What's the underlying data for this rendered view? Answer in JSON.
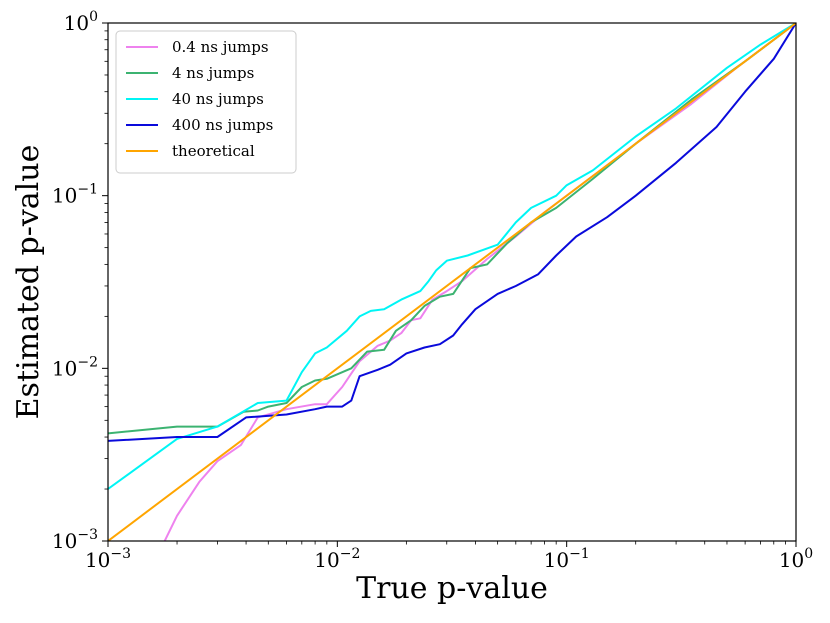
{
  "chart_data": {
    "type": "line",
    "xscale": "log",
    "yscale": "log",
    "xlabel": "True p-value",
    "ylabel": "Estimated p-value",
    "xlim": [
      0.001,
      1
    ],
    "ylim": [
      0.001,
      1
    ],
    "x_ticks": [
      {
        "value": 0.001,
        "base": "10",
        "exp": "−3"
      },
      {
        "value": 0.01,
        "base": "10",
        "exp": "−2"
      },
      {
        "value": 0.1,
        "base": "10",
        "exp": "−1"
      },
      {
        "value": 1,
        "base": "10",
        "exp": "0"
      }
    ],
    "y_ticks": [
      {
        "value": 0.001,
        "base": "10",
        "exp": "−3"
      },
      {
        "value": 0.01,
        "base": "10",
        "exp": "−2"
      },
      {
        "value": 0.1,
        "base": "10",
        "exp": "−1"
      },
      {
        "value": 1,
        "base": "10",
        "exp": "0"
      }
    ],
    "legend_position": "top-left",
    "series": [
      {
        "name": "0.4 ns jumps",
        "color": "#ee82ee",
        "points": [
          [
            0.0017,
            0.0009
          ],
          [
            0.002,
            0.0014
          ],
          [
            0.0025,
            0.0022
          ],
          [
            0.003,
            0.0029
          ],
          [
            0.0038,
            0.0036
          ],
          [
            0.0045,
            0.0052
          ],
          [
            0.006,
            0.0058
          ],
          [
            0.008,
            0.0062
          ],
          [
            0.009,
            0.0062
          ],
          [
            0.0105,
            0.0078
          ],
          [
            0.0125,
            0.011
          ],
          [
            0.015,
            0.0135
          ],
          [
            0.017,
            0.0145
          ],
          [
            0.019,
            0.016
          ],
          [
            0.021,
            0.019
          ],
          [
            0.023,
            0.0195
          ],
          [
            0.026,
            0.025
          ],
          [
            0.03,
            0.028
          ],
          [
            0.035,
            0.032
          ],
          [
            0.045,
            0.043
          ],
          [
            0.06,
            0.058
          ],
          [
            0.08,
            0.08
          ],
          [
            0.12,
            0.12
          ],
          [
            0.2,
            0.2
          ],
          [
            0.35,
            0.34
          ],
          [
            0.55,
            0.55
          ],
          [
            1.0,
            1.0
          ]
        ]
      },
      {
        "name": "4 ns jumps",
        "color": "#3cb371",
        "points": [
          [
            0.001,
            0.0042
          ],
          [
            0.002,
            0.0046
          ],
          [
            0.003,
            0.0046
          ],
          [
            0.0039,
            0.0056
          ],
          [
            0.0045,
            0.0057
          ],
          [
            0.005,
            0.006
          ],
          [
            0.006,
            0.0063
          ],
          [
            0.007,
            0.0078
          ],
          [
            0.008,
            0.0085
          ],
          [
            0.009,
            0.0087
          ],
          [
            0.0115,
            0.01
          ],
          [
            0.0135,
            0.0125
          ],
          [
            0.016,
            0.0128
          ],
          [
            0.018,
            0.0165
          ],
          [
            0.021,
            0.019
          ],
          [
            0.024,
            0.023
          ],
          [
            0.028,
            0.026
          ],
          [
            0.032,
            0.027
          ],
          [
            0.038,
            0.038
          ],
          [
            0.045,
            0.04
          ],
          [
            0.055,
            0.053
          ],
          [
            0.07,
            0.07
          ],
          [
            0.09,
            0.085
          ],
          [
            0.13,
            0.125
          ],
          [
            0.2,
            0.2
          ],
          [
            0.35,
            0.36
          ],
          [
            0.6,
            0.6
          ],
          [
            1.0,
            1.0
          ]
        ]
      },
      {
        "name": "40 ns jumps",
        "color": "#00f5f5",
        "points": [
          [
            0.001,
            0.002
          ],
          [
            0.002,
            0.0039
          ],
          [
            0.003,
            0.0046
          ],
          [
            0.0045,
            0.0063
          ],
          [
            0.006,
            0.0065
          ],
          [
            0.007,
            0.0095
          ],
          [
            0.008,
            0.0122
          ],
          [
            0.009,
            0.0132
          ],
          [
            0.011,
            0.0165
          ],
          [
            0.0125,
            0.02
          ],
          [
            0.014,
            0.0215
          ],
          [
            0.016,
            0.022
          ],
          [
            0.019,
            0.025
          ],
          [
            0.023,
            0.028
          ],
          [
            0.025,
            0.032
          ],
          [
            0.027,
            0.037
          ],
          [
            0.03,
            0.042
          ],
          [
            0.037,
            0.045
          ],
          [
            0.05,
            0.052
          ],
          [
            0.06,
            0.07
          ],
          [
            0.07,
            0.085
          ],
          [
            0.09,
            0.1
          ],
          [
            0.1,
            0.115
          ],
          [
            0.13,
            0.14
          ],
          [
            0.2,
            0.22
          ],
          [
            0.3,
            0.32
          ],
          [
            0.5,
            0.55
          ],
          [
            0.7,
            0.75
          ],
          [
            1.0,
            1.0
          ]
        ]
      },
      {
        "name": "400 ns jumps",
        "color": "#0a0adb",
        "points": [
          [
            0.001,
            0.0038
          ],
          [
            0.002,
            0.004
          ],
          [
            0.003,
            0.004
          ],
          [
            0.004,
            0.0052
          ],
          [
            0.006,
            0.0054
          ],
          [
            0.008,
            0.0058
          ],
          [
            0.009,
            0.006
          ],
          [
            0.0105,
            0.006
          ],
          [
            0.0115,
            0.0065
          ],
          [
            0.0125,
            0.009
          ],
          [
            0.015,
            0.0098
          ],
          [
            0.017,
            0.0105
          ],
          [
            0.02,
            0.0122
          ],
          [
            0.024,
            0.0132
          ],
          [
            0.028,
            0.0138
          ],
          [
            0.032,
            0.0155
          ],
          [
            0.035,
            0.018
          ],
          [
            0.04,
            0.022
          ],
          [
            0.05,
            0.027
          ],
          [
            0.06,
            0.03
          ],
          [
            0.075,
            0.035
          ],
          [
            0.09,
            0.045
          ],
          [
            0.11,
            0.058
          ],
          [
            0.15,
            0.075
          ],
          [
            0.2,
            0.1
          ],
          [
            0.3,
            0.155
          ],
          [
            0.45,
            0.25
          ],
          [
            0.6,
            0.4
          ],
          [
            0.8,
            0.62
          ],
          [
            1.0,
            1.0
          ]
        ]
      },
      {
        "name": "theoretical",
        "color": "#ffa500",
        "points": [
          [
            0.001,
            0.001
          ],
          [
            1.0,
            1.0
          ]
        ]
      }
    ]
  }
}
